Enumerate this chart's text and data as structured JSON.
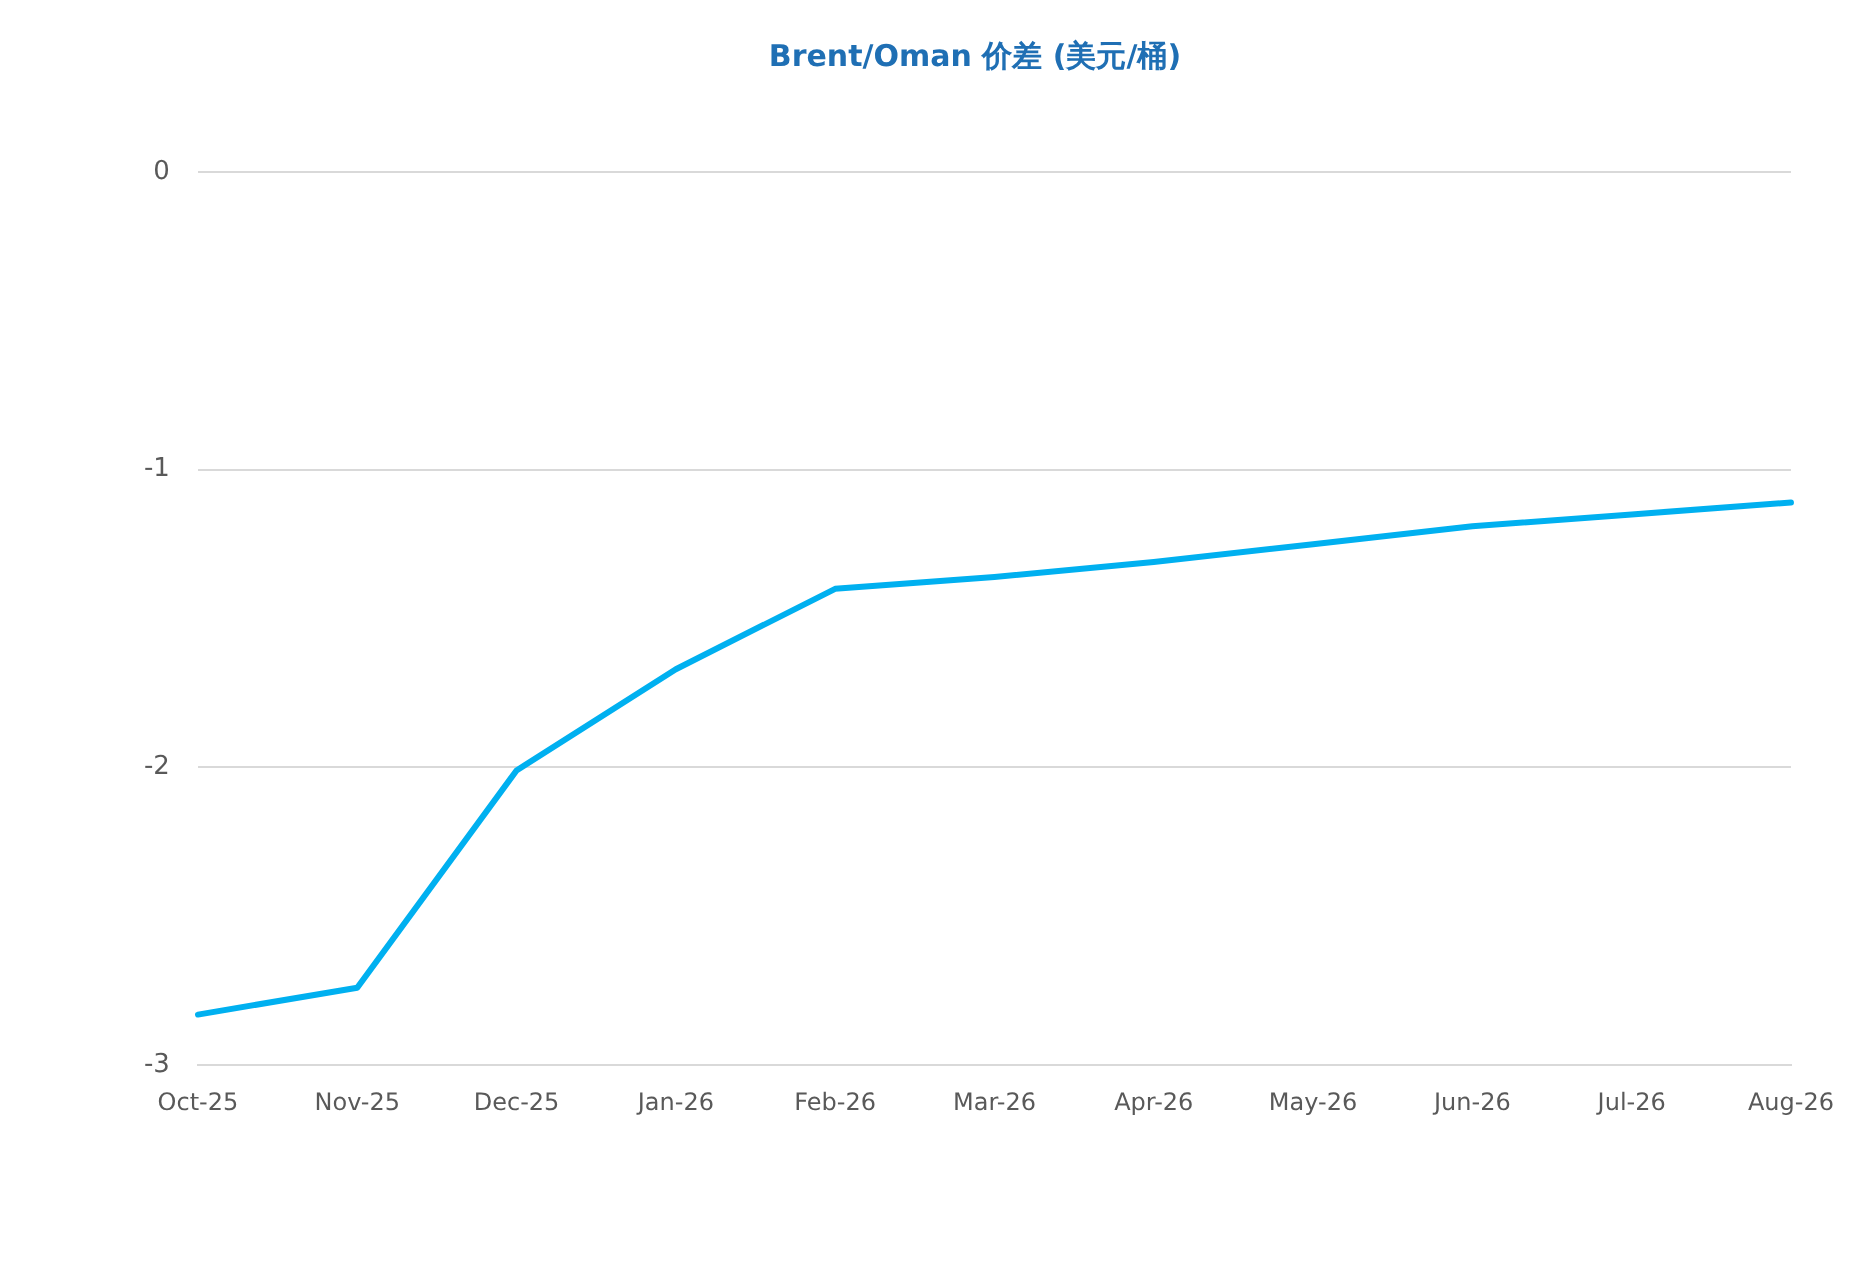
{
  "chart_data": {
    "type": "line",
    "title": "Brent/Oman 价差 (美元/桶)",
    "categories": [
      "Oct-25",
      "Nov-25",
      "Dec-25",
      "Jan-26",
      "Feb-26",
      "Mar-26",
      "Apr-26",
      "May-26",
      "Jun-26",
      "Jul-26",
      "Aug-26"
    ],
    "series": [
      {
        "color": "#00b0f0",
        "values": [
          -2.83,
          -2.74,
          -2.01,
          -1.67,
          -1.4,
          -1.36,
          -1.31,
          -1.25,
          -1.19,
          -1.15,
          -1.11
        ]
      }
    ],
    "ylim": [
      -3,
      0
    ],
    "yticks": [
      -3,
      -2,
      -1,
      0
    ],
    "grid": "y",
    "legend": false,
    "marker": "none",
    "line_style": "solid"
  }
}
